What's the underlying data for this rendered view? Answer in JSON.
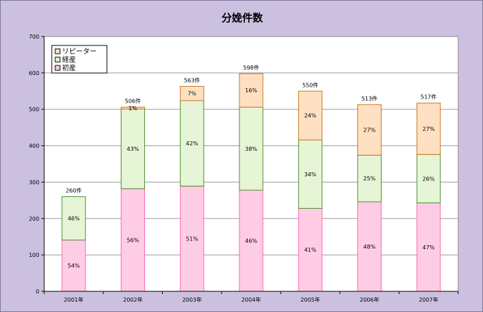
{
  "chart_data": {
    "type": "bar",
    "stacked": true,
    "title": "分娩件数",
    "xlabel": "",
    "ylabel": "",
    "ylim": [
      0,
      700
    ],
    "yticks": [
      0,
      100,
      200,
      300,
      400,
      500,
      600,
      700
    ],
    "grid": true,
    "legend_position": "top-left",
    "categories": [
      "2001年",
      "2002年",
      "2003年",
      "2004年",
      "2005年",
      "2006年",
      "2007年"
    ],
    "totals": [
      260,
      506,
      563,
      598,
      550,
      513,
      517
    ],
    "total_labels": [
      "260件",
      "506件",
      "563件",
      "598件",
      "550件",
      "513件",
      "517件"
    ],
    "series": [
      {
        "name": "初産",
        "color": "#ffcce6",
        "stroke": "#ff66b3",
        "values": [
          141,
          282,
          289,
          278,
          228,
          246,
          243
        ],
        "labels": [
          "54%",
          "56%",
          "51%",
          "46%",
          "41%",
          "48%",
          "47%"
        ]
      },
      {
        "name": "経産",
        "color": "#e6f5d6",
        "stroke": "#4d8c33",
        "values": [
          119,
          219,
          235,
          228,
          188,
          128,
          133
        ],
        "labels": [
          "46%",
          "43%",
          "42%",
          "38%",
          "34%",
          "25%",
          "26%"
        ]
      },
      {
        "name": "リピーター",
        "color": "#ffe0c2",
        "stroke": "#c8761e",
        "values": [
          0,
          5,
          39,
          92,
          134,
          139,
          141
        ],
        "labels": [
          "",
          "1%",
          "7%",
          "16%",
          "24%",
          "27%",
          "27%"
        ]
      }
    ],
    "legend_order": [
      "リピーター",
      "経産",
      "初産"
    ]
  }
}
